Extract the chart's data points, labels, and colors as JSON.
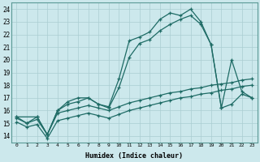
{
  "xlabel": "Humidex (Indice chaleur)",
  "background_color": "#cce8ec",
  "grid_color": "#aacdd2",
  "line_color": "#1e6b65",
  "xlim": [
    -0.5,
    23.5
  ],
  "ylim": [
    13.5,
    24.5
  ],
  "xticks": [
    0,
    1,
    2,
    3,
    4,
    5,
    6,
    7,
    8,
    9,
    10,
    11,
    12,
    13,
    14,
    15,
    16,
    17,
    18,
    19,
    20,
    21,
    22,
    23
  ],
  "yticks": [
    14,
    15,
    16,
    17,
    18,
    19,
    20,
    21,
    22,
    23,
    24
  ],
  "line1_x": [
    0,
    1,
    2,
    3,
    4,
    5,
    6,
    7,
    8,
    9,
    10,
    11,
    12,
    13,
    14,
    15,
    16,
    17,
    18,
    19,
    20,
    21,
    22,
    23
  ],
  "line1_y": [
    15.5,
    15.0,
    15.5,
    14.1,
    16.0,
    16.7,
    17.0,
    17.0,
    16.5,
    16.3,
    18.5,
    21.5,
    21.8,
    22.2,
    23.2,
    23.7,
    23.5,
    24.0,
    23.0,
    21.2,
    16.2,
    20.0,
    17.5,
    17.0
  ],
  "line2_x": [
    0,
    2,
    3,
    4,
    5,
    6,
    7,
    8,
    9,
    10,
    11,
    12,
    13,
    14,
    15,
    16,
    17,
    18,
    19,
    20,
    21,
    22,
    23
  ],
  "line2_y": [
    15.5,
    15.5,
    14.1,
    16.0,
    16.5,
    16.7,
    17.0,
    16.5,
    16.2,
    17.8,
    20.2,
    21.3,
    21.6,
    22.3,
    22.8,
    23.2,
    23.5,
    22.8,
    21.2,
    16.2,
    16.5,
    17.3,
    17.0
  ],
  "line3_x": [
    0,
    1,
    2,
    3,
    4,
    5,
    6,
    7,
    8,
    9,
    10,
    11,
    12,
    13,
    14,
    15,
    16,
    17,
    18,
    19,
    20,
    21,
    22,
    23
  ],
  "line3_y": [
    15.4,
    15.0,
    15.3,
    14.1,
    15.8,
    16.0,
    16.2,
    16.4,
    16.2,
    16.0,
    16.3,
    16.6,
    16.8,
    17.0,
    17.2,
    17.4,
    17.5,
    17.7,
    17.8,
    18.0,
    18.1,
    18.2,
    18.4,
    18.5
  ],
  "line4_x": [
    0,
    1,
    2,
    3,
    4,
    5,
    6,
    7,
    8,
    9,
    10,
    11,
    12,
    13,
    14,
    15,
    16,
    17,
    18,
    19,
    20,
    21,
    22,
    23
  ],
  "line4_y": [
    15.1,
    14.7,
    14.9,
    13.8,
    15.2,
    15.4,
    15.6,
    15.8,
    15.6,
    15.4,
    15.7,
    16.0,
    16.2,
    16.4,
    16.6,
    16.8,
    17.0,
    17.1,
    17.3,
    17.4,
    17.6,
    17.7,
    17.9,
    18.0
  ]
}
